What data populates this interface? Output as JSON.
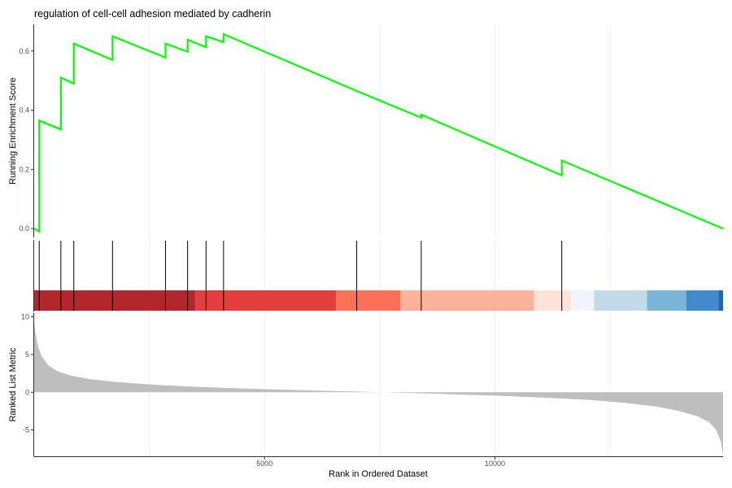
{
  "chart_data": {
    "type": "line",
    "title": "regulation of cell-cell adhesion mediated by cadherin",
    "xlabel": "Rank in Ordered Dataset",
    "xlim": [
      0,
      14950
    ],
    "x_ticks": [
      5000,
      10000
    ],
    "grid": true,
    "panels": {
      "running_es": {
        "ylabel": "Running Enrichment Score",
        "ylim": [
          -0.03,
          0.69
        ],
        "y_ticks": [
          0.0,
          0.2,
          0.4,
          0.6
        ],
        "color": "#00ff00",
        "series": [
          {
            "x": [
              0,
              110,
              110,
              580,
              580,
              860,
              860,
              1700,
              1700,
              2850,
              2850,
              3330,
              3330,
              3730,
              3730,
              4110,
              4110,
              7000,
              7000,
              8400,
              8400,
              11450,
              11450,
              14950
            ],
            "y": [
              0.0,
              -0.01,
              0.365,
              0.335,
              0.51,
              0.49,
              0.625,
              0.57,
              0.65,
              0.578,
              0.625,
              0.598,
              0.638,
              0.613,
              0.65,
              0.63,
              0.657,
              0.465,
              0.465,
              0.375,
              0.385,
              0.18,
              0.23,
              0.0
            ]
          }
        ]
      },
      "hits": {
        "color": "#000000",
        "positions": [
          110,
          580,
          860,
          1700,
          2850,
          3330,
          3730,
          4110,
          7000,
          8400,
          11450
        ]
      },
      "rank_bands": {
        "boundaries": [
          0,
          3500,
          6550,
          7950,
          10850,
          11650,
          12150,
          13300,
          14150,
          14850,
          14950
        ],
        "colors": [
          "#b2272b",
          "#e3403d",
          "#fb7158",
          "#fcb39a",
          "#fde3d8",
          "#f1f4fb",
          "#c3dbe9",
          "#7ab4d8",
          "#418acb",
          "#2265b0"
        ]
      },
      "ranked_metric": {
        "ylabel": "Ranked List Metric",
        "ylim": [
          -8.5,
          10.5
        ],
        "y_ticks": [
          -5,
          0,
          5,
          10
        ],
        "color": "#bebebe",
        "profile_x": [
          0,
          30,
          80,
          150,
          300,
          500,
          800,
          1200,
          1800,
          2600,
          3500,
          4500,
          5500,
          6500,
          7400,
          8200,
          9000,
          10000,
          11000,
          12000,
          12800,
          13500,
          14000,
          14400,
          14650,
          14800,
          14900,
          14950
        ],
        "profile_y": [
          9.5,
          7.8,
          6.2,
          4.9,
          3.6,
          2.8,
          2.2,
          1.75,
          1.35,
          1.0,
          0.72,
          0.5,
          0.32,
          0.17,
          0.03,
          -0.1,
          -0.25,
          -0.45,
          -0.7,
          -1.0,
          -1.4,
          -1.9,
          -2.5,
          -3.2,
          -4.0,
          -5.0,
          -6.5,
          -8.4
        ]
      }
    }
  }
}
